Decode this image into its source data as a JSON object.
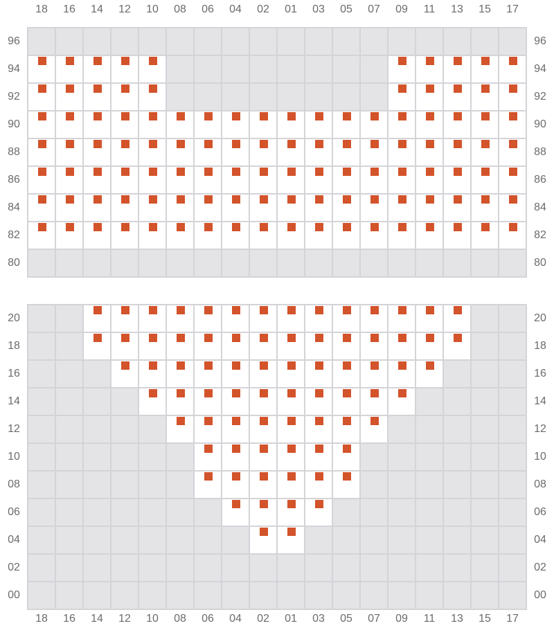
{
  "columns": [
    "18",
    "16",
    "14",
    "12",
    "10",
    "08",
    "06",
    "04",
    "02",
    "01",
    "03",
    "05",
    "07",
    "09",
    "11",
    "13",
    "15",
    "17"
  ],
  "colors": {
    "seat": "#d3532b",
    "unavailable": "#e4e4e7",
    "available": "#ffffff",
    "grid": "#d4d4d8"
  },
  "sections": [
    {
      "rows": [
        {
          "row": "96",
          "open": []
        },
        {
          "row": "94",
          "open": [
            [
              "18",
              "10"
            ],
            [
              "09",
              "17"
            ]
          ]
        },
        {
          "row": "92",
          "open": [
            [
              "18",
              "10"
            ],
            [
              "09",
              "17"
            ]
          ]
        },
        {
          "row": "90",
          "open": [
            [
              "18",
              "17"
            ]
          ]
        },
        {
          "row": "88",
          "open": [
            [
              "18",
              "17"
            ]
          ]
        },
        {
          "row": "86",
          "open": [
            [
              "18",
              "17"
            ]
          ]
        },
        {
          "row": "84",
          "open": [
            [
              "18",
              "17"
            ]
          ]
        },
        {
          "row": "82",
          "open": [
            [
              "18",
              "17"
            ]
          ]
        },
        {
          "row": "80",
          "open": []
        }
      ]
    },
    {
      "rows": [
        {
          "row": "20",
          "open": [
            [
              "14",
              "13"
            ]
          ]
        },
        {
          "row": "18",
          "open": [
            [
              "14",
              "13"
            ]
          ]
        },
        {
          "row": "16",
          "open": [
            [
              "12",
              "11"
            ]
          ]
        },
        {
          "row": "14",
          "open": [
            [
              "10",
              "09"
            ]
          ]
        },
        {
          "row": "12",
          "open": [
            [
              "08",
              "07"
            ]
          ]
        },
        {
          "row": "10",
          "open": [
            [
              "06",
              "05"
            ]
          ]
        },
        {
          "row": "08",
          "open": [
            [
              "06",
              "05"
            ]
          ]
        },
        {
          "row": "06",
          "open": [
            [
              "04",
              "03"
            ]
          ]
        },
        {
          "row": "04",
          "open": [
            [
              "02",
              "01"
            ]
          ]
        },
        {
          "row": "02",
          "open": []
        },
        {
          "row": "00",
          "open": []
        }
      ]
    }
  ]
}
